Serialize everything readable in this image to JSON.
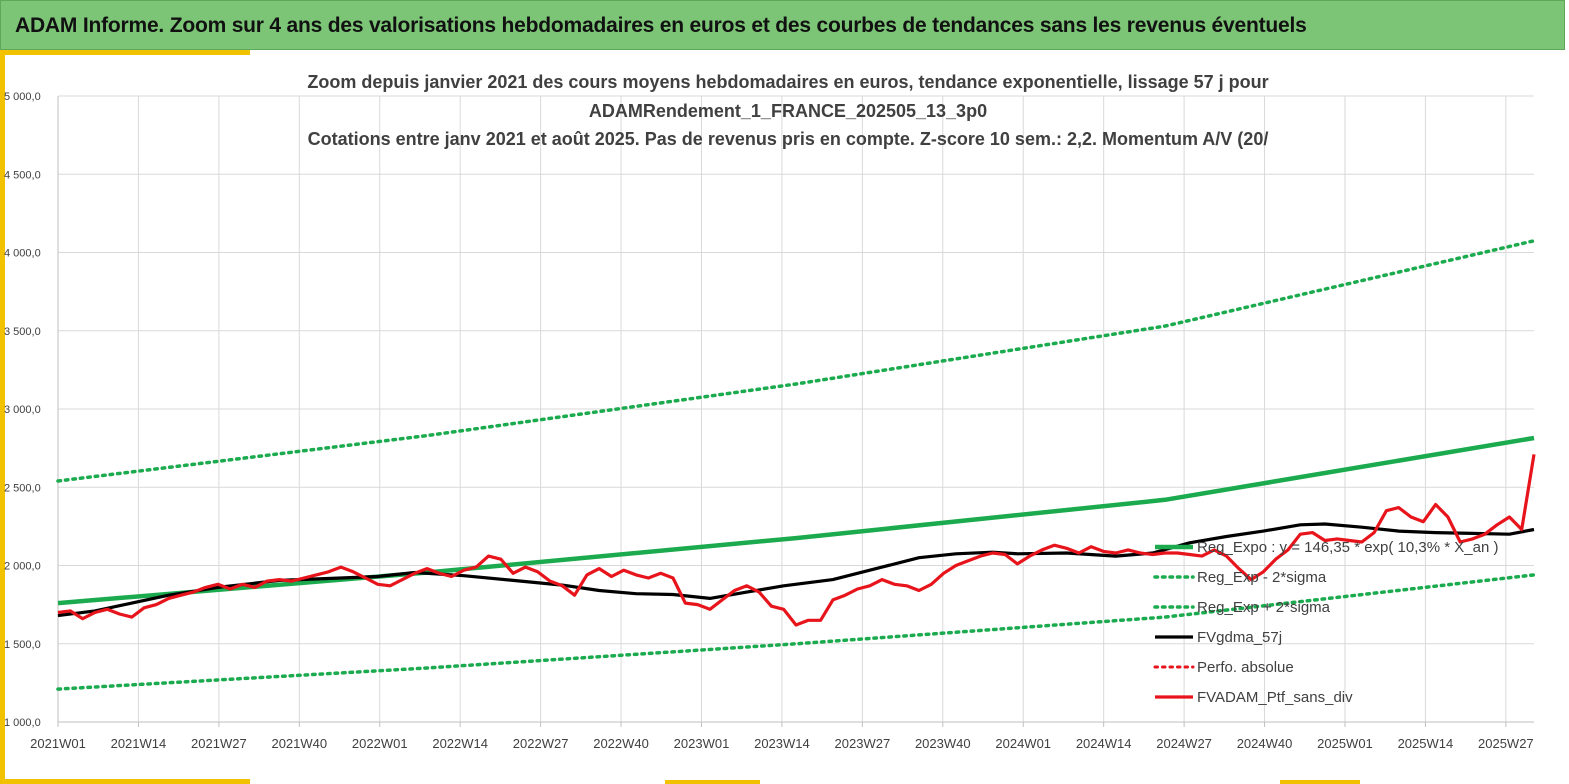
{
  "header": {
    "title": "ADAM Informe. Zoom sur 4 ans des valorisations hebdomadaires en euros et des courbes de tendances sans les revenus éventuels"
  },
  "colors": {
    "header_bg": "#7cc576",
    "trend_green": "#1bab4e",
    "dotted_green": "#1bab4e",
    "smooth_black": "#000000",
    "price_red": "#e8141b",
    "accent": "#f2c200"
  },
  "chart_data": {
    "type": "line",
    "title_lines": [
      "Zoom depuis janvier 2021 des cours moyens hebdomadaires  en euros, tendance exponentielle, lissage 57 j pour",
      "ADAMRendement_1_FRANCE_202505_13_3p0",
      "Cotations entre janv 2021 et août 2025. Pas de revenus pris en compte. Z-score 10 sem.: 2,2. Momentum A/V (20/"
    ],
    "ylim": [
      1000,
      5000
    ],
    "yticks": [
      "1 000,0",
      "1 500,0",
      "2 000,0",
      "2 500,0",
      "3 000,0",
      "3 500,0",
      "4 000,0",
      "4 500,0",
      "5 000,0"
    ],
    "xticks": [
      "2021W01",
      "2021W14",
      "2021W27",
      "2021W40",
      "2022W01",
      "2022W14",
      "2022W27",
      "2022W40",
      "2023W01",
      "2023W14",
      "2023W27",
      "2023W40",
      "2024W01",
      "2024W14",
      "2024W27",
      "2024W40",
      "2025W01",
      "2025W14",
      "2025W27"
    ],
    "grid": true,
    "legend_position": "bottom-right",
    "legend": [
      "Reg_Expo : y = 146,35 * exp( 10,3% *  X_an )",
      "Reg_Exp - 2*sigma",
      "Reg_Exp + 2*sigma",
      "FVgdma_57j",
      "Perfo. absolue",
      "FVADAM_Ptf_sans_div"
    ],
    "series": [
      {
        "name": "Reg_Expo : y = 146,35 * exp( 10,3% *  X_an )",
        "style": "solid-green",
        "x": [
          0,
          60,
          120,
          180,
          240
        ],
        "values": [
          1760,
          1955,
          2175,
          2420,
          2815
        ]
      },
      {
        "name": "Reg_Exp + 2*sigma",
        "style": "dotted-green",
        "x": [
          0,
          60,
          120,
          180,
          240
        ],
        "values": [
          2540,
          2830,
          3160,
          3530,
          4075
        ]
      },
      {
        "name": "Reg_Exp - 2*sigma",
        "style": "dotted-green",
        "x": [
          0,
          60,
          120,
          180,
          240
        ],
        "values": [
          1210,
          1345,
          1500,
          1670,
          1940
        ]
      },
      {
        "name": "FVgdma_57j",
        "style": "solid-black",
        "x": [
          0,
          6,
          12,
          18,
          26,
          36,
          46,
          52,
          58,
          66,
          74,
          82,
          88,
          94,
          100,
          106,
          112,
          118,
          126,
          134,
          140,
          146,
          152,
          156,
          164,
          172,
          178,
          184,
          190,
          196,
          202,
          206,
          212,
          218,
          224,
          230,
          236,
          240
        ],
        "values": [
          1680,
          1710,
          1760,
          1810,
          1860,
          1905,
          1920,
          1930,
          1955,
          1935,
          1905,
          1875,
          1840,
          1820,
          1815,
          1790,
          1830,
          1870,
          1910,
          1990,
          2050,
          2075,
          2085,
          2075,
          2080,
          2060,
          2080,
          2145,
          2185,
          2220,
          2260,
          2265,
          2245,
          2220,
          2210,
          2205,
          2200,
          2230
        ]
      },
      {
        "name": "FVADAM_Ptf_sans_div",
        "style": "solid-red",
        "x": [
          0,
          2,
          4,
          6,
          8,
          10,
          12,
          14,
          16,
          18,
          20,
          22,
          24,
          26,
          28,
          30,
          32,
          34,
          36,
          38,
          40,
          42,
          44,
          46,
          48,
          50,
          52,
          54,
          56,
          58,
          60,
          62,
          64,
          66,
          68,
          70,
          72,
          74,
          76,
          78,
          80,
          82,
          84,
          86,
          88,
          90,
          92,
          94,
          96,
          98,
          100,
          102,
          104,
          106,
          108,
          110,
          112,
          114,
          116,
          118,
          120,
          122,
          124,
          126,
          128,
          130,
          132,
          134,
          136,
          138,
          140,
          142,
          144,
          146,
          148,
          150,
          152,
          154,
          156,
          158,
          160,
          162,
          164,
          166,
          168,
          170,
          172,
          174,
          176,
          178,
          180,
          182,
          184,
          186,
          188,
          190,
          192,
          194,
          196,
          198,
          200,
          202,
          204,
          206,
          208,
          210,
          212,
          214,
          216,
          218,
          220,
          222,
          224,
          226,
          228,
          230,
          232,
          234,
          236,
          238,
          240
        ],
        "values": [
          1700,
          1710,
          1660,
          1700,
          1720,
          1690,
          1670,
          1730,
          1750,
          1790,
          1810,
          1830,
          1860,
          1880,
          1850,
          1880,
          1860,
          1900,
          1910,
          1900,
          1920,
          1940,
          1960,
          1990,
          1960,
          1920,
          1880,
          1870,
          1910,
          1950,
          1980,
          1950,
          1930,
          1970,
          1990,
          2060,
          2040,
          1950,
          1990,
          1960,
          1900,
          1870,
          1810,
          1940,
          1980,
          1930,
          1970,
          1940,
          1920,
          1950,
          1920,
          1760,
          1750,
          1720,
          1780,
          1840,
          1870,
          1830,
          1740,
          1720,
          1620,
          1650,
          1650,
          1780,
          1810,
          1850,
          1870,
          1910,
          1880,
          1870,
          1840,
          1880,
          1950,
          2000,
          2030,
          2060,
          2080,
          2070,
          2010,
          2060,
          2100,
          2130,
          2110,
          2080,
          2120,
          2090,
          2080,
          2100,
          2080,
          2070,
          2080,
          2080,
          2070,
          2060,
          2100,
          2060,
          1980,
          1910,
          1960,
          2040,
          2100,
          2200,
          2210,
          2160,
          2170,
          2160,
          2150,
          2210,
          2350,
          2370,
          2310,
          2280,
          2390,
          2310,
          2150,
          2170,
          2200,
          2260,
          2310,
          2230,
          2710
        ]
      }
    ]
  }
}
